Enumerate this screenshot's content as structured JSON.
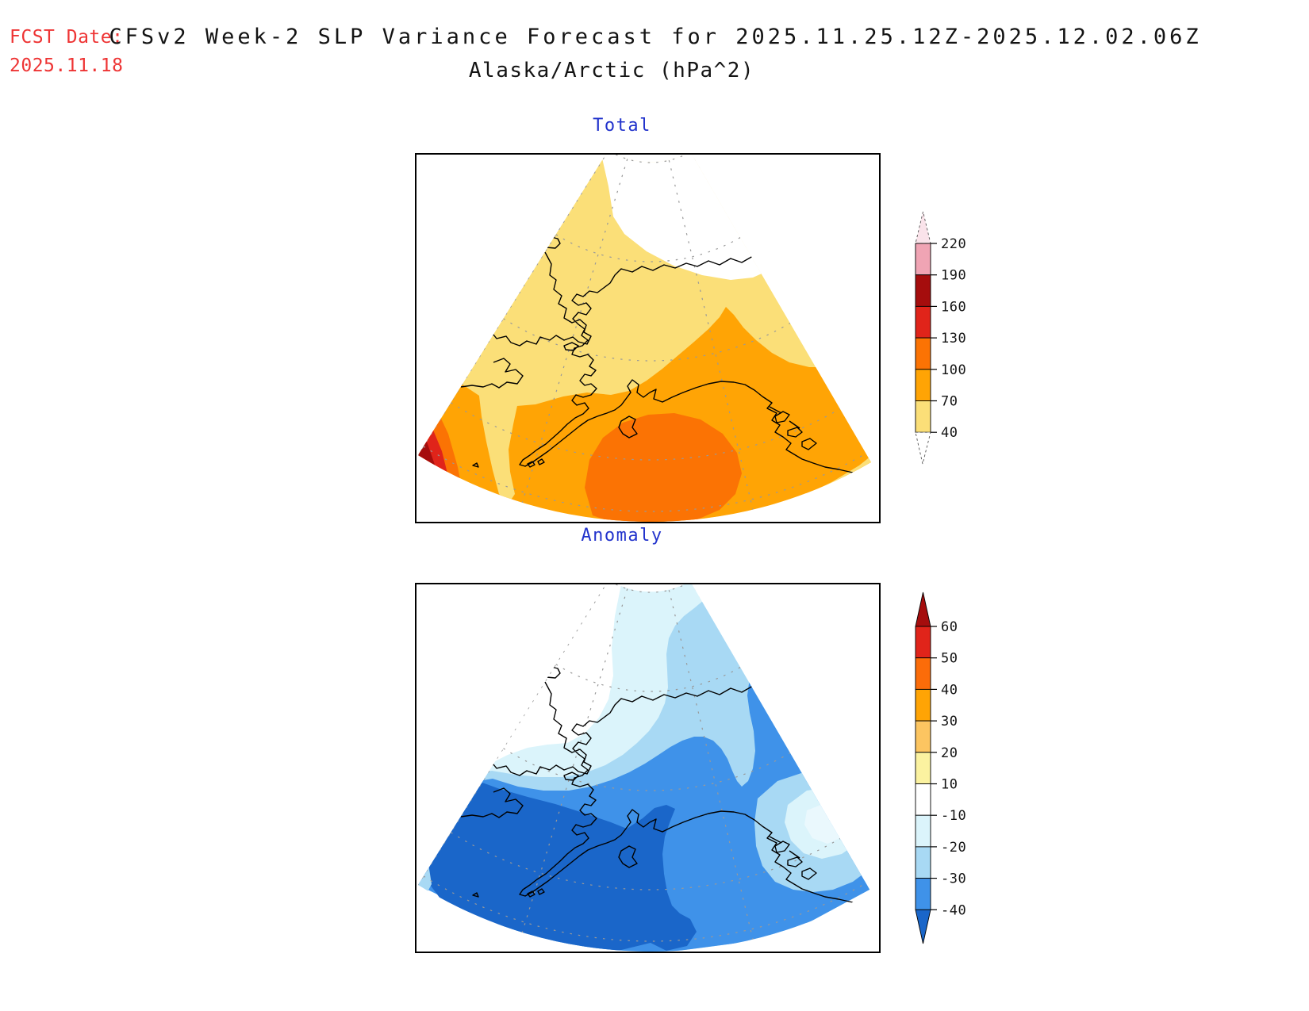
{
  "header": {
    "fcst_label": "FCST Date:",
    "fcst_date": "2025.11.18",
    "title_line1": "CFSv2 Week-2 SLP Variance Forecast for 2025.11.25.12Z-2025.12.02.06Z",
    "title_line2": "Alaska/Arctic (hPa^2)"
  },
  "panels": [
    {
      "id": "total",
      "title": "Total"
    },
    {
      "id": "anomaly",
      "title": "Anomaly"
    }
  ],
  "colorbars": {
    "total": {
      "tick_labels": [
        "220",
        "190",
        "160",
        "130",
        "100",
        "70",
        "40"
      ],
      "segment_colors_top_to_bottom": [
        "#F0A4B4",
        "#A50D0D",
        "#E0241A",
        "#FB7304",
        "#FFA405",
        "#FBDF78"
      ],
      "tip_color": "#FAE3EA",
      "tail_color": "#FFFFFF"
    },
    "anomaly": {
      "tick_labels": [
        "60",
        "50",
        "40",
        "30",
        "20",
        "10",
        "-10",
        "-20",
        "-30",
        "-40"
      ],
      "segment_colors_top_to_bottom": [
        "#E0241A",
        "#FB6C09",
        "#FFA405",
        "#FCC561",
        "#FBF2A0",
        "#FFFFFF",
        "#DBF4FB",
        "#A8D9F4",
        "#3F92E9"
      ],
      "top_arrow_color": "#A50D0D",
      "bottom_arrow_color": "#1A66C9"
    }
  },
  "map_palette": {
    "total": {
      "base": "#FBDF78",
      "lt40": "#FFFFFF",
      "amber": "#FFA405",
      "dkorange": "#FB7304",
      "red": "#E0241A",
      "dkred": "#A50D0D"
    },
    "anomaly": {
      "base": "#FFFFFF",
      "pale": "#DBF4FB",
      "light": "#A8D9F4",
      "med": "#3F92E9",
      "dark": "#1A66C9",
      "core": "#EAF8FD"
    }
  },
  "chart_data": [
    {
      "type": "heatmap",
      "subtype": "filled-contour-map",
      "title": "Total",
      "region": "Alaska/Arctic",
      "units": "hPa^2",
      "projection": "polar stereographic sector (fan)",
      "contour_levels": [
        40,
        70,
        100,
        130,
        160,
        190,
        220
      ],
      "palette_low_to_high": [
        "#FFFFFF",
        "#FBDF78",
        "#FFA405",
        "#FB7304",
        "#E0241A",
        "#A50D0D",
        "#F0A4B4",
        "#FAE3EA"
      ],
      "legend_position": "right",
      "values_summary": {
        "arctic_top_right": "< 40 (white)",
        "interior_alaska_and_chukotka": "40-70",
        "bering_and_gulf_of_alaska_band": "70-100",
        "gulf_of_alaska_maximum_blob": "100-130",
        "far_southwest_corner_maximum": "130-190 (red to dark red)"
      }
    },
    {
      "type": "heatmap",
      "subtype": "filled-contour-map",
      "title": "Anomaly",
      "region": "Alaska/Arctic",
      "units": "hPa^2",
      "projection": "polar stereographic sector (fan)",
      "contour_levels": [
        -40,
        -30,
        -20,
        -10,
        10,
        20,
        30,
        40,
        50,
        60
      ],
      "palette_low_to_high": [
        "#1A66C9",
        "#3F92E9",
        "#A8D9F4",
        "#DBF4FB",
        "#FFFFFF",
        "#FBF2A0",
        "#FCC561",
        "#FFA405",
        "#FB6C09",
        "#E0241A",
        "#A50D0D"
      ],
      "legend_position": "right",
      "values_summary": {
        "arctic_apex": "-10 to 10 (white, near normal)",
        "north_slope_band": "-10 to -20",
        "central_alaska_band": "-20 to -30",
        "bering_to_gulf_broad": "-30 to -40",
        "bering_sea_alaska_peninsula_minimum": "< -40 (dark blue)",
        "southeast_panhandle_patch": "-10 to -20"
      }
    }
  ]
}
